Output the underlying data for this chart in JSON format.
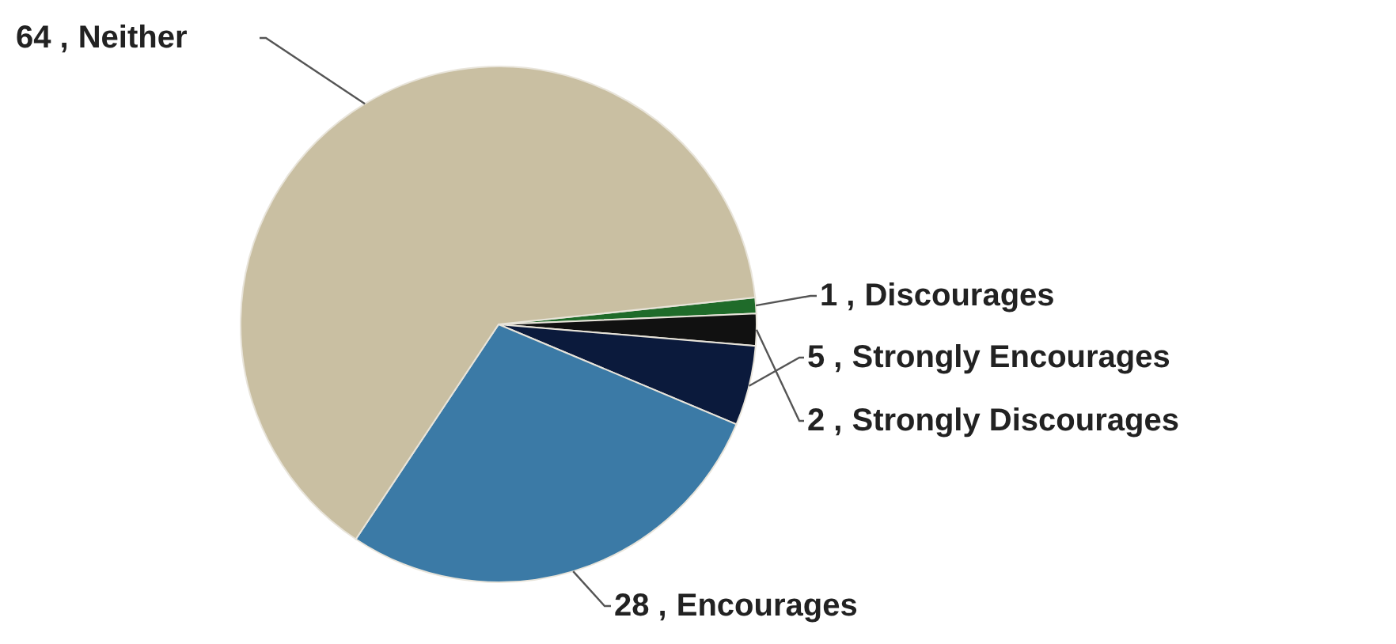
{
  "chart_data": {
    "type": "pie",
    "categories": [
      "Discourages",
      "Strongly Discourages",
      "Strongly Encourages",
      "Encourages",
      "Neither"
    ],
    "values": [
      1,
      2,
      5,
      28,
      64
    ],
    "value_labels": [
      "1 ,",
      "2 ,",
      "5 ,",
      "28 ,",
      "64 ,"
    ],
    "colors": [
      "#1f6b2a",
      "#111111",
      "#0b1a3c",
      "#3b7aa6",
      "#c9bfa2"
    ],
    "legend": false
  }
}
